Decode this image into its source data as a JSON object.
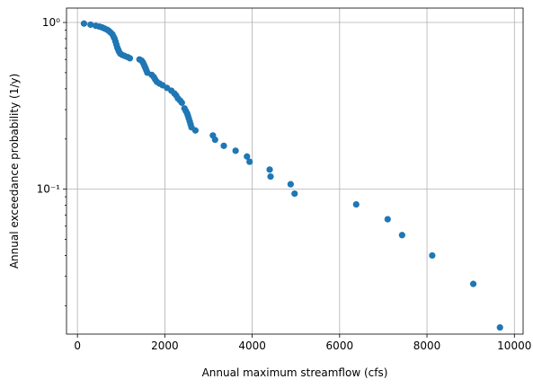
{
  "chart_data": {
    "type": "scatter",
    "xlabel": "Annual maximum streamflow (cfs)",
    "ylabel": "Annual exceedance probability (1/y)",
    "xlim": [
      -250,
      10200
    ],
    "ylim": [
      0.0135,
      1.22
    ],
    "yscale": "log",
    "grid": true,
    "marker_color": "#1f77b4",
    "xticks": [
      0,
      2000,
      4000,
      6000,
      8000,
      10000
    ],
    "xtick_labels": [
      "0",
      "2000",
      "4000",
      "6000",
      "8000",
      "10000"
    ],
    "yticks": [
      1,
      0.1
    ],
    "ytick_labels": [
      "10⁰",
      "10⁻¹"
    ],
    "points": [
      [
        150,
        0.985
      ],
      [
        300,
        0.97
      ],
      [
        420,
        0.955
      ],
      [
        500,
        0.945
      ],
      [
        560,
        0.935
      ],
      [
        620,
        0.92
      ],
      [
        680,
        0.905
      ],
      [
        720,
        0.89
      ],
      [
        760,
        0.87
      ],
      [
        800,
        0.85
      ],
      [
        830,
        0.82
      ],
      [
        850,
        0.8
      ],
      [
        870,
        0.77
      ],
      [
        890,
        0.74
      ],
      [
        910,
        0.71
      ],
      [
        930,
        0.69
      ],
      [
        950,
        0.67
      ],
      [
        980,
        0.65
      ],
      [
        1020,
        0.64
      ],
      [
        1080,
        0.63
      ],
      [
        1150,
        0.62
      ],
      [
        1200,
        0.61
      ],
      [
        1420,
        0.6
      ],
      [
        1470,
        0.59
      ],
      [
        1500,
        0.575
      ],
      [
        1520,
        0.56
      ],
      [
        1540,
        0.545
      ],
      [
        1560,
        0.53
      ],
      [
        1580,
        0.515
      ],
      [
        1600,
        0.5
      ],
      [
        1700,
        0.485
      ],
      [
        1750,
        0.47
      ],
      [
        1780,
        0.455
      ],
      [
        1820,
        0.44
      ],
      [
        1880,
        0.43
      ],
      [
        1950,
        0.42
      ],
      [
        2050,
        0.405
      ],
      [
        2150,
        0.39
      ],
      [
        2220,
        0.375
      ],
      [
        2260,
        0.365
      ],
      [
        2300,
        0.35
      ],
      [
        2350,
        0.34
      ],
      [
        2390,
        0.33
      ],
      [
        2450,
        0.305
      ],
      [
        2480,
        0.295
      ],
      [
        2510,
        0.285
      ],
      [
        2530,
        0.275
      ],
      [
        2550,
        0.265
      ],
      [
        2570,
        0.255
      ],
      [
        2590,
        0.245
      ],
      [
        2610,
        0.235
      ],
      [
        2700,
        0.225
      ],
      [
        3100,
        0.21
      ],
      [
        3150,
        0.198
      ],
      [
        3350,
        0.182
      ],
      [
        3620,
        0.17
      ],
      [
        3880,
        0.157
      ],
      [
        3940,
        0.146
      ],
      [
        4400,
        0.131
      ],
      [
        4420,
        0.119
      ],
      [
        4880,
        0.107
      ],
      [
        4970,
        0.094
      ],
      [
        6380,
        0.081
      ],
      [
        7100,
        0.066
      ],
      [
        7430,
        0.053
      ],
      [
        8120,
        0.04
      ],
      [
        9060,
        0.027
      ],
      [
        9670,
        0.0148
      ]
    ]
  }
}
